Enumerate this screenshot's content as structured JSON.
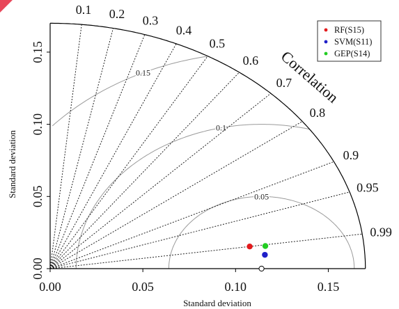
{
  "chart_data": {
    "type": "scatter",
    "subtype": "taylor-diagram",
    "title": "",
    "xlabel": "Standard deviation",
    "ylabel": "Standard deviation",
    "arc_label": "Correlation",
    "xlim": [
      0,
      0.17
    ],
    "ylim": [
      0,
      0.17
    ],
    "x_ticks": [
      "0.00",
      "0.05",
      "0.10",
      "0.15"
    ],
    "y_ticks": [
      "0.00",
      "0.05",
      "0.10",
      "0.15"
    ],
    "correlation_ticks": [
      "0.1",
      "0.2",
      "0.3",
      "0.4",
      "0.5",
      "0.6",
      "0.7",
      "0.8",
      "0.9",
      "0.95",
      "0.99"
    ],
    "rmsd_contours": [
      "0.05",
      "0.1",
      "0.15"
    ],
    "reference_point": {
      "std": 0.114,
      "correlation": 1.0
    },
    "series": [
      {
        "name": "RF(S15)",
        "color": "#e31a1c",
        "std": 0.1087,
        "correlation": 0.99
      },
      {
        "name": "SVM(S11)",
        "color": "#1f1fc8",
        "std": 0.1162,
        "correlation": 0.9966
      },
      {
        "name": "GEP(S14)",
        "color": "#22cc22",
        "std": 0.1171,
        "correlation": 0.991
      }
    ],
    "legend_position": "top-right"
  }
}
